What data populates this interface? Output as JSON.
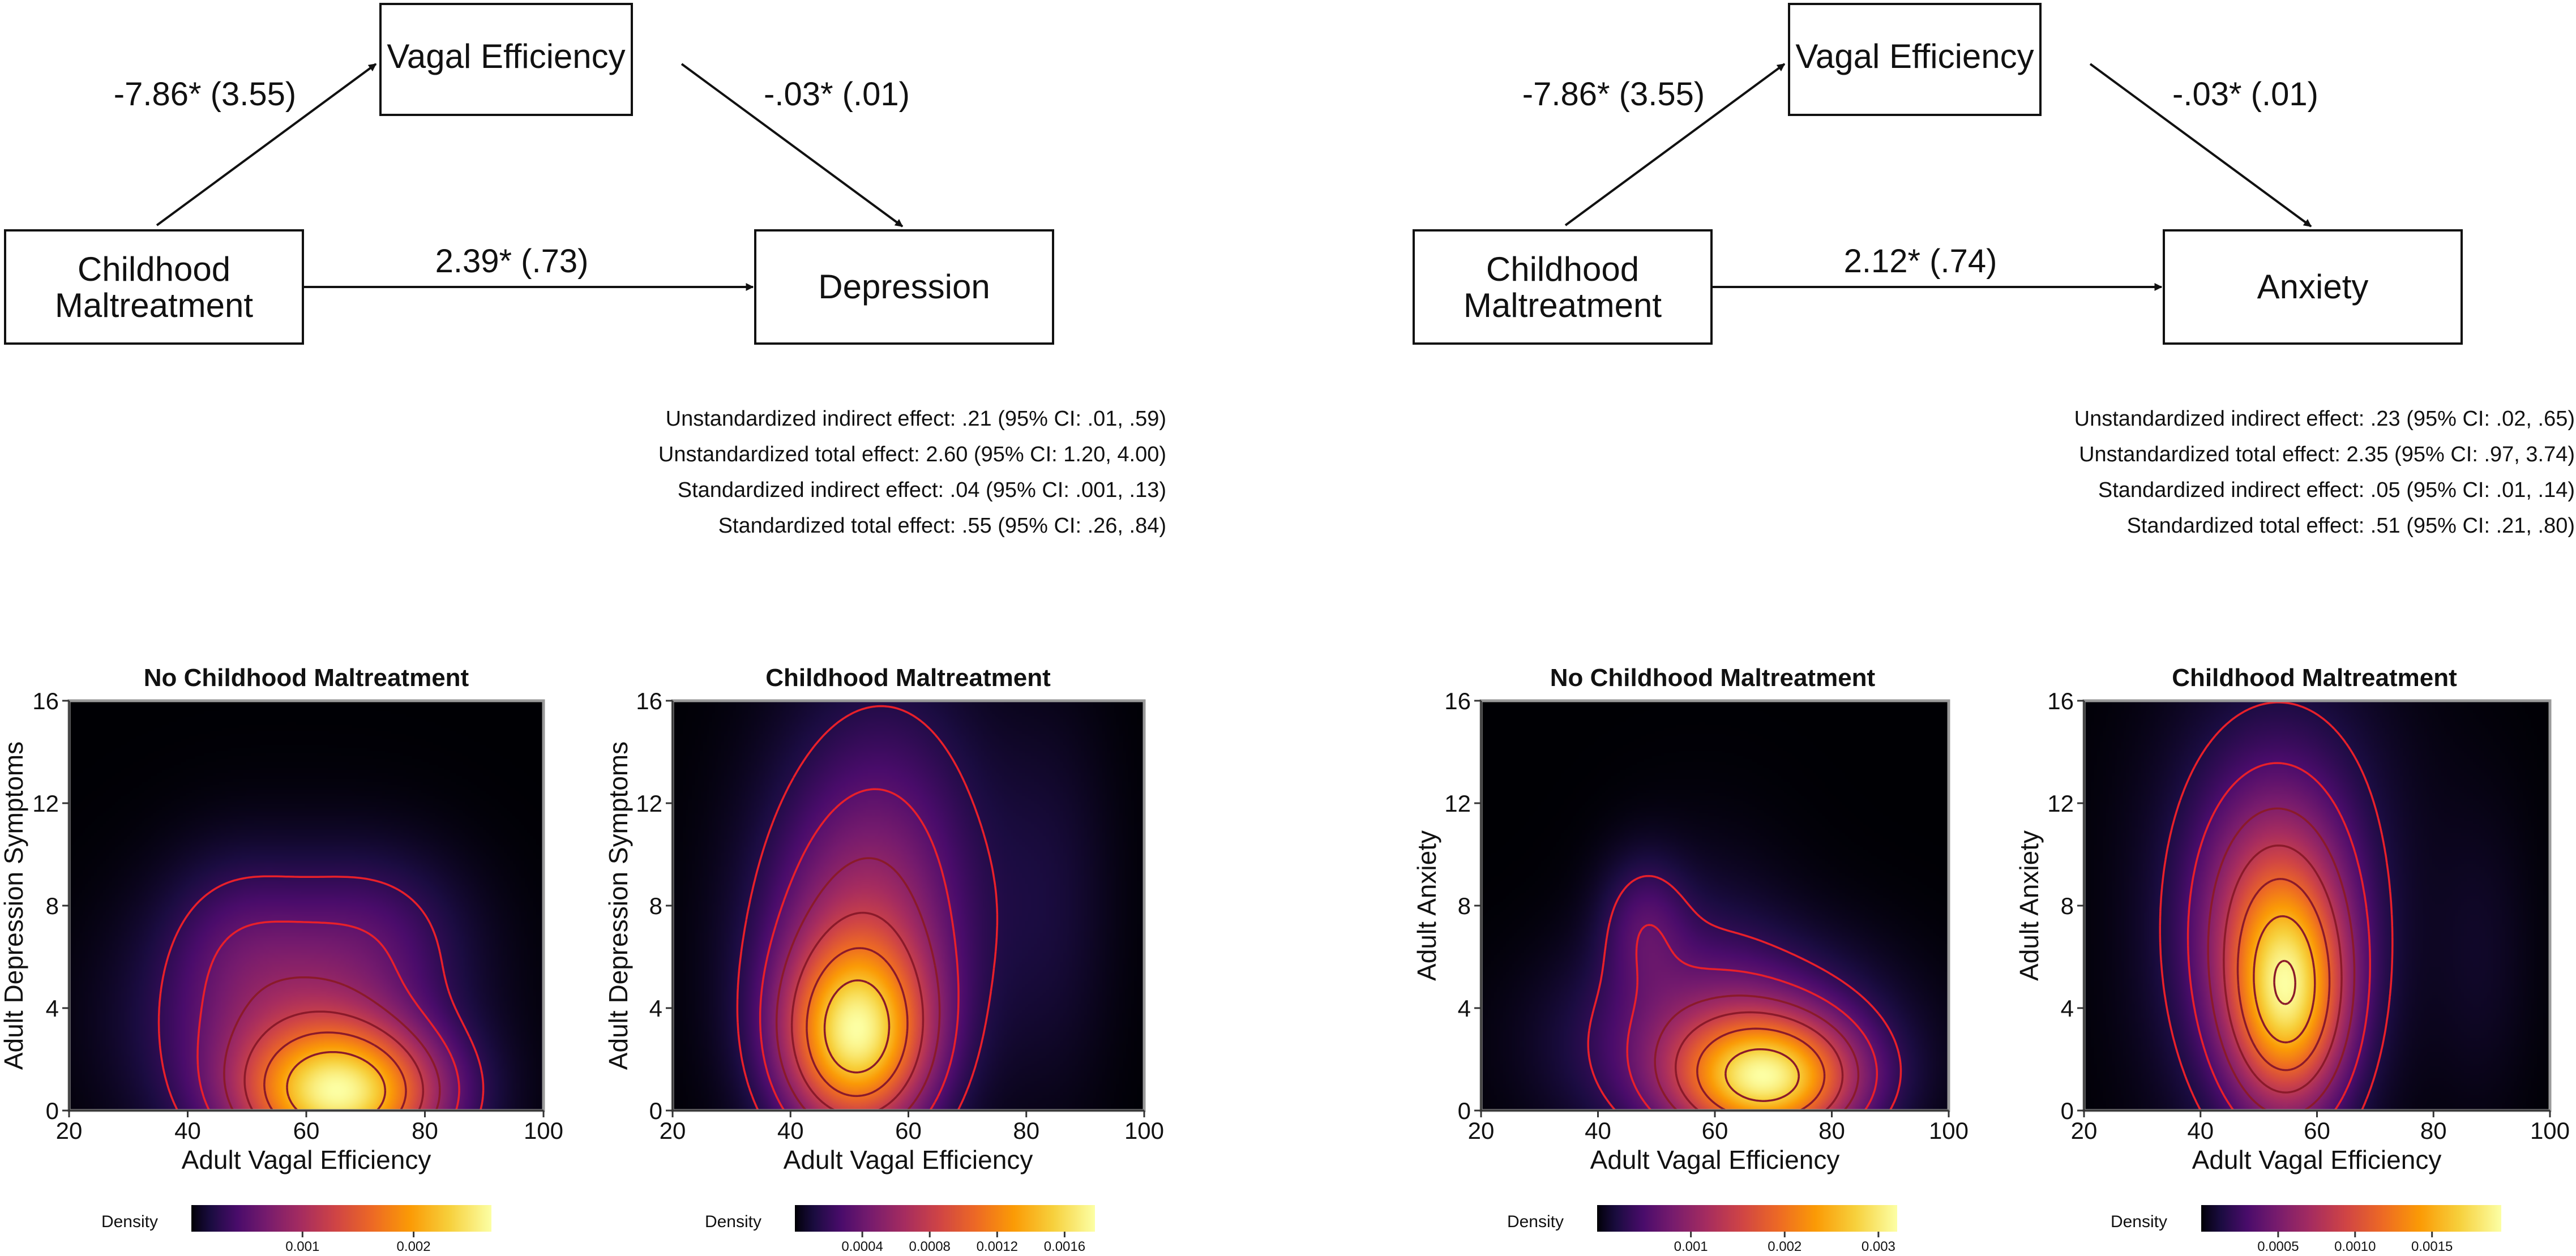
{
  "diagrams": [
    {
      "mediator": "Vagal Efficiency",
      "predictor_line1": "Childhood",
      "predictor_line2": "Maltreatment",
      "outcome": "Depression",
      "path_a": "-7.86* (3.55)",
      "path_b": "-.03* (.01)",
      "path_c": "2.39* (.73)",
      "effects": [
        "Unstandardized indirect effect: .21 (95% CI: .01, .59)",
        "Unstandardized total effect: 2.60 (95% CI: 1.20, 4.00)",
        "Standardized indirect effect: .04 (95% CI: .001, .13)",
        "Standardized total effect: .55 (95% CI: .26, .84)"
      ]
    },
    {
      "mediator": "Vagal Efficiency",
      "predictor_line1": "Childhood",
      "predictor_line2": "Maltreatment",
      "outcome": "Anxiety",
      "path_a": "-7.86* (3.55)",
      "path_b": "-.03* (.01)",
      "path_c": "2.12* (.74)",
      "effects": [
        "Unstandardized indirect effect: .23 (95% CI: .02, .65)",
        "Unstandardized total effect: 2.35 (95% CI: .97, 3.74)",
        "Standardized indirect effect: .05 (95% CI: .01, .14)",
        "Standardized total effect: .51 (95% CI: .21, .80)"
      ]
    }
  ],
  "colors": {
    "contour_outer": "#e8202a",
    "contour_inner": "#8a1a2a",
    "frame": "#9a9a9a",
    "inferno": [
      "#000004",
      "#1b0c41",
      "#4a0c6b",
      "#781c6d",
      "#a52c60",
      "#cf4446",
      "#ed6925",
      "#fb9b06",
      "#f7d13d",
      "#fcffa4"
    ]
  },
  "chart_data": [
    {
      "type": "heatmap",
      "title": "No Childhood Maltreatment",
      "xlabel": "Adult Vagal Efficiency",
      "ylabel": "Adult Depression Symptoms",
      "xlim": [
        20,
        100
      ],
      "ylim": [
        0,
        16
      ],
      "xticks": [
        "20",
        "40",
        "60",
        "80",
        "100"
      ],
      "yticks": [
        "0",
        "4",
        "8",
        "12",
        "16"
      ],
      "legend_title": "Density",
      "colorbar_ticks": [
        "0.001",
        "0.002"
      ],
      "colorbar_values": [
        0.001,
        0.002
      ],
      "colorbar_range": [
        0.0,
        0.0027
      ],
      "components": [
        {
          "mx": 66,
          "my": 0.6,
          "sx": 11,
          "sy": 1.8,
          "w": 1.0
        },
        {
          "mx": 58,
          "my": 3.5,
          "sx": 15,
          "sy": 3.2,
          "w": 0.35
        },
        {
          "mx": 72,
          "my": 7.0,
          "sx": 10,
          "sy": 2.2,
          "w": 0.1
        },
        {
          "mx": 48,
          "my": 7.0,
          "sx": 8,
          "sy": 2.2,
          "w": 0.08
        }
      ],
      "levels": [
        0.1,
        0.2,
        0.32,
        0.45,
        0.6,
        0.78
      ]
    },
    {
      "type": "heatmap",
      "title": "Childhood Maltreatment",
      "xlabel": "Adult Vagal Efficiency",
      "ylabel": "Adult Depression Symptoms",
      "xlim": [
        20,
        100
      ],
      "ylim": [
        0,
        16
      ],
      "xticks": [
        "20",
        "40",
        "60",
        "80",
        "100"
      ],
      "yticks": [
        "0",
        "4",
        "8",
        "12",
        "16"
      ],
      "legend_title": "Density",
      "colorbar_ticks": [
        "0.0004",
        "0.0008",
        "0.0012",
        "0.0016"
      ],
      "colorbar_values": [
        0.0004,
        0.0008,
        0.0012,
        0.0016
      ],
      "colorbar_range": [
        0.0,
        0.00178
      ],
      "components": [
        {
          "mx": 51,
          "my": 2.8,
          "sx": 8,
          "sy": 2.4,
          "w": 1.0
        },
        {
          "mx": 52,
          "my": 5.5,
          "sx": 11,
          "sy": 4.0,
          "w": 0.45
        },
        {
          "mx": 56,
          "my": 11.0,
          "sx": 12,
          "sy": 4.5,
          "w": 0.17
        },
        {
          "mx": 84,
          "my": 8.0,
          "sx": 7,
          "sy": 5.0,
          "w": 0.07
        }
      ],
      "levels": [
        0.08,
        0.18,
        0.3,
        0.45,
        0.62,
        0.82
      ]
    },
    {
      "type": "heatmap",
      "title": "No Childhood Maltreatment",
      "xlabel": "Adult Vagal Efficiency",
      "ylabel": "Adult Anxiety",
      "xlim": [
        20,
        100
      ],
      "ylim": [
        0,
        16
      ],
      "xticks": [
        "20",
        "40",
        "60",
        "80",
        "100"
      ],
      "yticks": [
        "0",
        "4",
        "8",
        "12",
        "16"
      ],
      "legend_title": "Density",
      "colorbar_ticks": [
        "0.001",
        "0.002",
        "0.003"
      ],
      "colorbar_values": [
        0.001,
        0.002,
        0.003
      ],
      "colorbar_range": [
        0.0,
        0.0032
      ],
      "components": [
        {
          "mx": 69,
          "my": 1.2,
          "sx": 10,
          "sy": 1.6,
          "w": 1.0
        },
        {
          "mx": 62,
          "my": 2.6,
          "sx": 16,
          "sy": 2.5,
          "w": 0.35
        },
        {
          "mx": 48,
          "my": 7.2,
          "sx": 5,
          "sy": 1.8,
          "w": 0.18
        },
        {
          "mx": 58,
          "my": 6.0,
          "sx": 10,
          "sy": 3.0,
          "w": 0.06
        }
      ],
      "levels": [
        0.1,
        0.2,
        0.32,
        0.45,
        0.62,
        0.85
      ]
    },
    {
      "type": "heatmap",
      "title": "Childhood Maltreatment",
      "xlabel": "Adult Vagal Efficiency",
      "ylabel": "Adult Anxiety",
      "xlim": [
        20,
        100
      ],
      "ylim": [
        0,
        16
      ],
      "xticks": [
        "20",
        "40",
        "60",
        "80",
        "100"
      ],
      "yticks": [
        "0",
        "4",
        "8",
        "12",
        "16"
      ],
      "legend_title": "Density",
      "colorbar_ticks": [
        "0.0005",
        "0.0010",
        "0.0015"
      ],
      "colorbar_values": [
        0.0005,
        0.001,
        0.0015
      ],
      "colorbar_range": [
        0.0,
        0.00195
      ],
      "components": [
        {
          "mx": 55,
          "my": 4.2,
          "sx": 6.5,
          "sy": 2.8,
          "w": 1.0
        },
        {
          "mx": 53,
          "my": 7.5,
          "sx": 8.5,
          "sy": 3.4,
          "w": 0.5
        },
        {
          "mx": 52,
          "my": 6.0,
          "sx": 12,
          "sy": 5.0,
          "w": 0.25
        },
        {
          "mx": 55,
          "my": 13.0,
          "sx": 14,
          "sy": 4.0,
          "w": 0.07
        },
        {
          "mx": 88,
          "my": 6.0,
          "sx": 6,
          "sy": 4.0,
          "w": 0.05
        }
      ],
      "levels": [
        0.07,
        0.16,
        0.28,
        0.42,
        0.58,
        0.78,
        0.97
      ]
    }
  ]
}
